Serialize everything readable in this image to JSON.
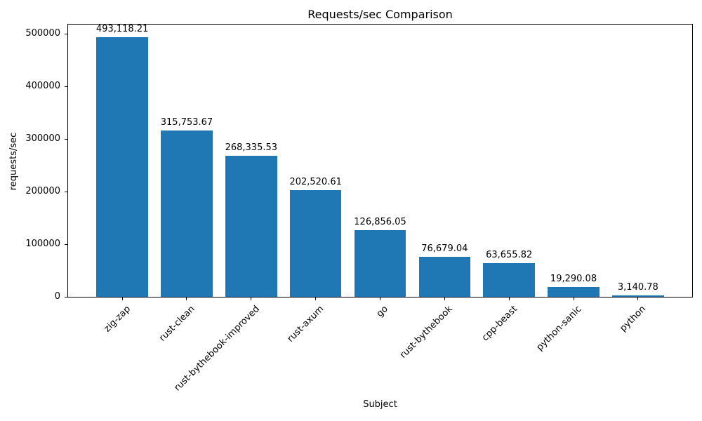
{
  "chart_data": {
    "type": "bar",
    "title": "Requests/sec Comparison",
    "xlabel": "Subject",
    "ylabel": "requests/sec",
    "categories": [
      "zig-zap",
      "rust-clean",
      "rust-bythebook-improved",
      "rust-axum",
      "go",
      "rust-bythebook",
      "cpp-beast",
      "python-sanic",
      "python"
    ],
    "values": [
      493118.21,
      315753.67,
      268335.53,
      202520.61,
      126856.05,
      76679.04,
      63655.82,
      19290.08,
      3140.78
    ],
    "value_labels": [
      "493,118.21",
      "315,753.67",
      "268,335.53",
      "202,520.61",
      "126,856.05",
      "76,679.04",
      "63,655.82",
      "19,290.08",
      "3,140.78"
    ],
    "ytick_labels": [
      "0",
      "100000",
      "200000",
      "300000",
      "400000",
      "500000"
    ],
    "ytick_values": [
      0,
      100000,
      200000,
      300000,
      400000,
      500000
    ],
    "ylim": [
      0,
      517774
    ],
    "bar_color": "#1f77b4",
    "text_color": "#000000",
    "grid": false,
    "legend": null,
    "xtick_rotation": 45
  }
}
